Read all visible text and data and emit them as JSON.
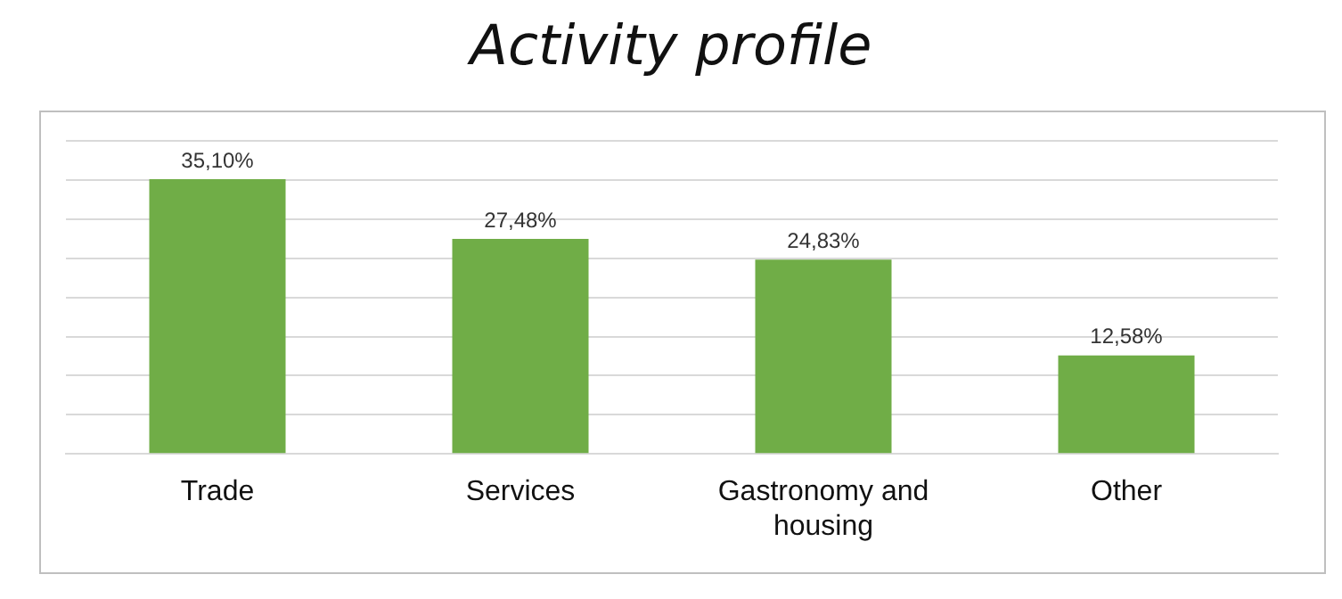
{
  "chart_data": {
    "type": "bar",
    "title": "Activity profile",
    "categories": [
      "Trade",
      "Services",
      "Gastronomy and housing",
      "Other"
    ],
    "values": [
      35.1,
      27.48,
      24.83,
      12.58
    ],
    "value_labels": [
      "35,10%",
      "27,48%",
      "24,83%",
      "12,58%"
    ],
    "color": "#70ad47",
    "ylim": [
      0,
      40
    ],
    "yticks": [
      {
        "value": 0,
        "label": null
      },
      {
        "value": 5,
        "label": null
      },
      {
        "value": 10,
        "label": null
      },
      {
        "value": 15,
        "label": null
      },
      {
        "value": 20,
        "label": null
      },
      {
        "value": 25,
        "label": null
      },
      {
        "value": 30,
        "label": null
      },
      {
        "value": 35,
        "label": null
      },
      {
        "value": 40,
        "label": null
      }
    ],
    "grid": "y",
    "tick_labels": "x",
    "legend": false
  }
}
